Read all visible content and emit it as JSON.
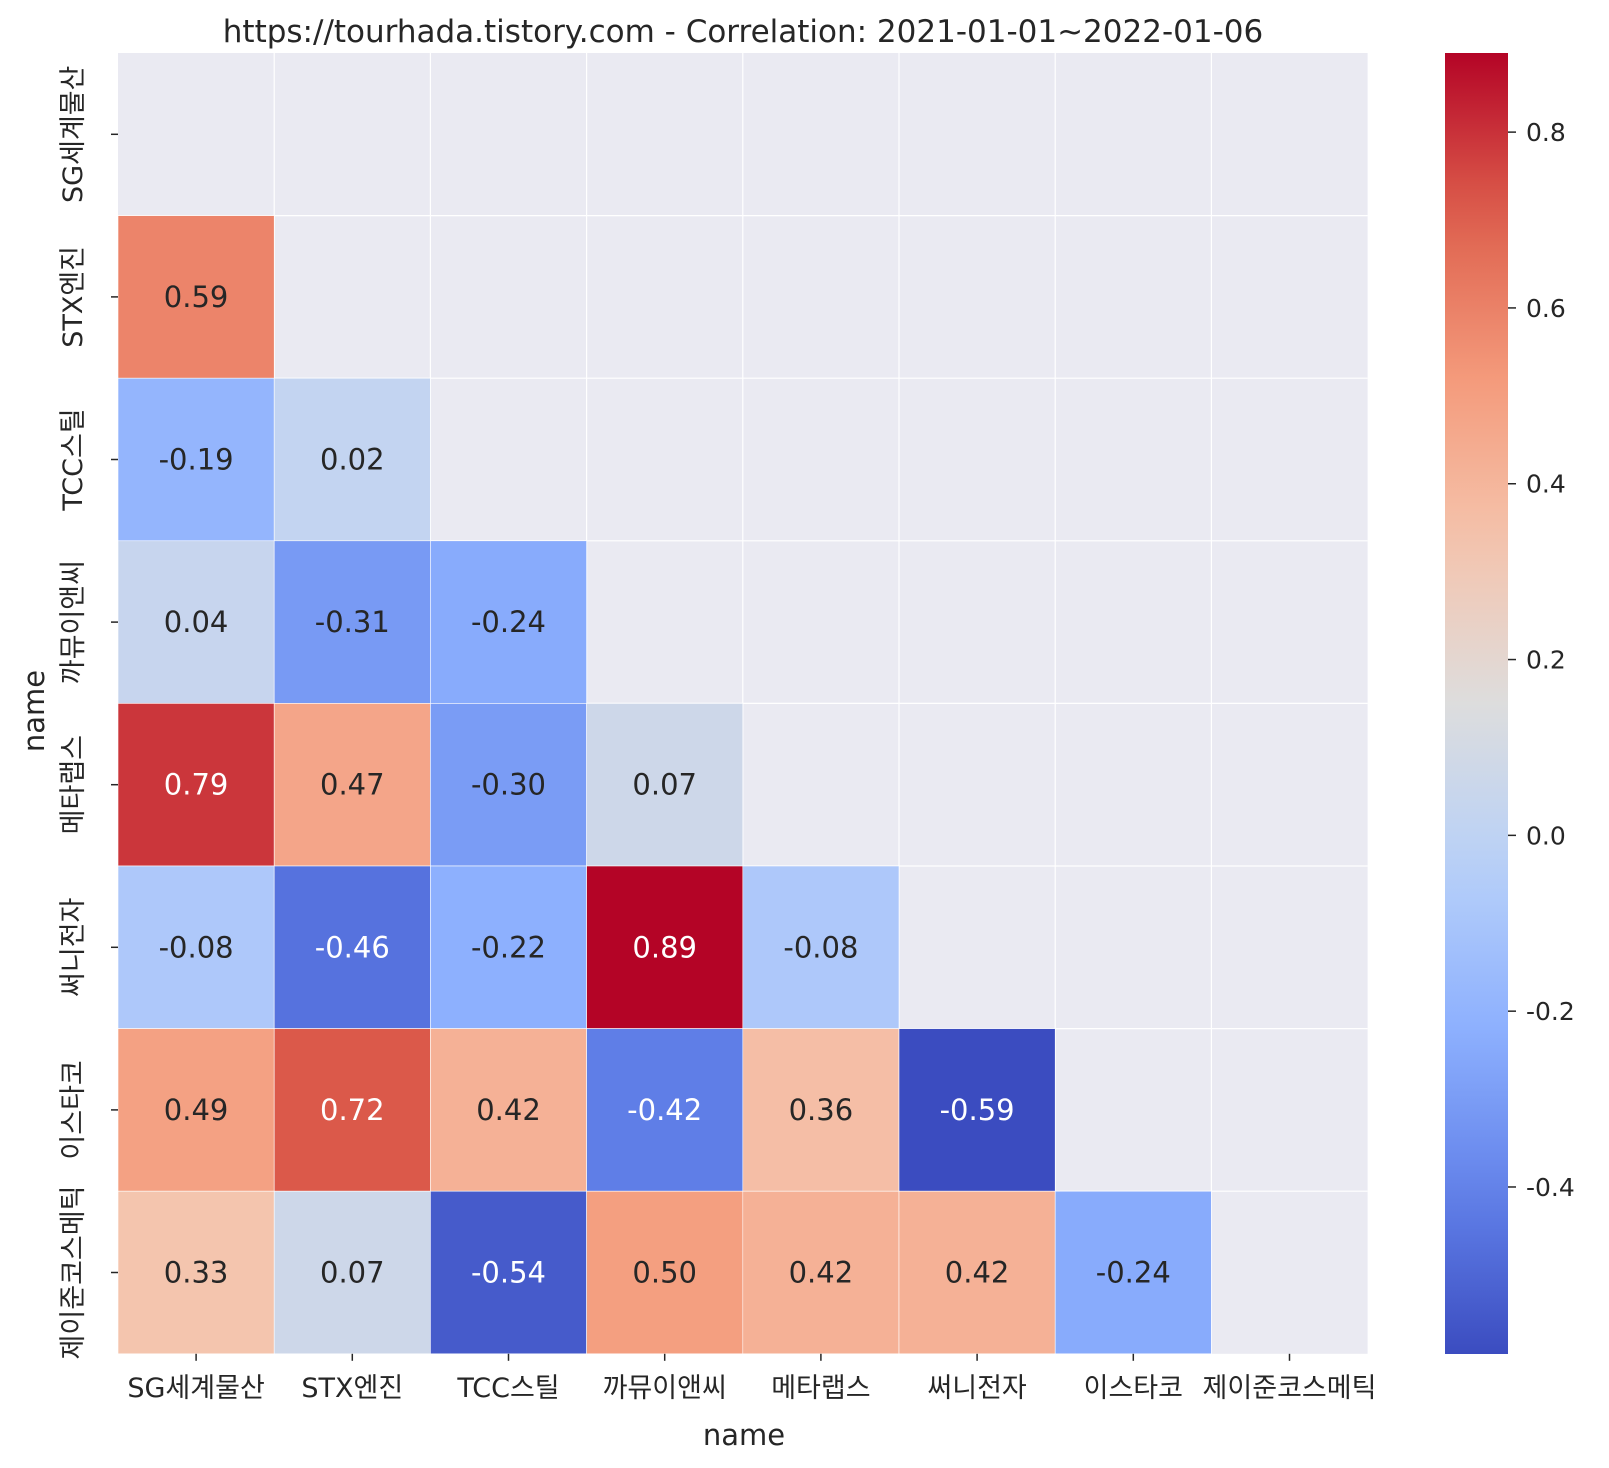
{
  "chart_data": {
    "type": "heatmap",
    "title": "https://tourhada.tistory.com - Correlation: 2021-01-01~2022-01-06",
    "xlabel": "name",
    "ylabel": "name",
    "categories": [
      "SG세계물산",
      "STX엔진",
      "TCC스틸",
      "까뮤이앤씨",
      "메타랩스",
      "써니전자",
      "이스타코",
      "제이준코스메틱"
    ],
    "values": [
      [
        null,
        null,
        null,
        null,
        null,
        null,
        null,
        null
      ],
      [
        0.59,
        null,
        null,
        null,
        null,
        null,
        null,
        null
      ],
      [
        -0.19,
        0.02,
        null,
        null,
        null,
        null,
        null,
        null
      ],
      [
        0.04,
        -0.31,
        -0.24,
        null,
        null,
        null,
        null,
        null
      ],
      [
        0.79,
        0.47,
        -0.3,
        0.07,
        null,
        null,
        null,
        null
      ],
      [
        -0.08,
        -0.46,
        -0.22,
        0.89,
        -0.08,
        null,
        null,
        null
      ],
      [
        0.49,
        0.72,
        0.42,
        -0.42,
        0.36,
        -0.59,
        null,
        null
      ],
      [
        0.33,
        0.07,
        -0.54,
        0.5,
        0.42,
        0.42,
        -0.24,
        null
      ]
    ],
    "colormap": "coolwarm",
    "vmin": -0.59,
    "vmax": 0.89,
    "colorbar_ticks": [
      -0.4,
      -0.2,
      0.0,
      0.2,
      0.4,
      0.6,
      0.8
    ],
    "colorbar_tick_labels": [
      "-0.4",
      "-0.2",
      "0.0",
      "0.2",
      "0.4",
      "0.6",
      "0.8"
    ],
    "masked_color": "#eaeaf2",
    "annotation_format": "0.00"
  }
}
